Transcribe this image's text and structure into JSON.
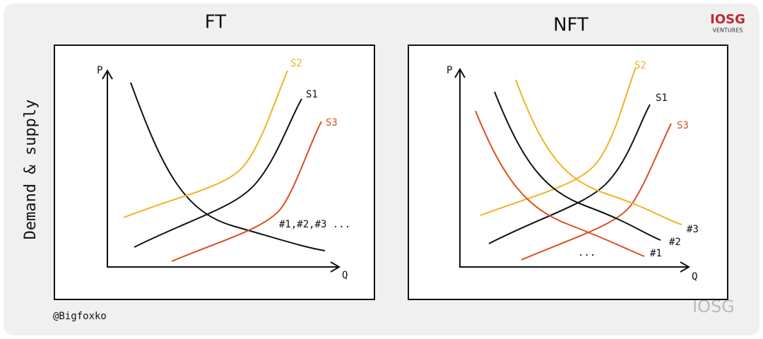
{
  "side_label": "Demand & supply",
  "left_panel": {
    "title": "FT",
    "axis_y": "P",
    "axis_x": "Q",
    "supply": [
      "S2",
      "S1",
      "S3"
    ],
    "demand_label": "#1,#2,#3 ..."
  },
  "right_panel": {
    "title": "NFT",
    "axis_y": "P",
    "axis_x": "Q",
    "supply": [
      "S2",
      "S1",
      "S3"
    ],
    "demand": [
      "#3",
      "#2",
      "#1"
    ],
    "ellipsis": "..."
  },
  "credit": "@Bigfoxko",
  "logo": {
    "name": "IOSG",
    "sub": "VENTURES"
  },
  "watermark": "IOSG"
}
